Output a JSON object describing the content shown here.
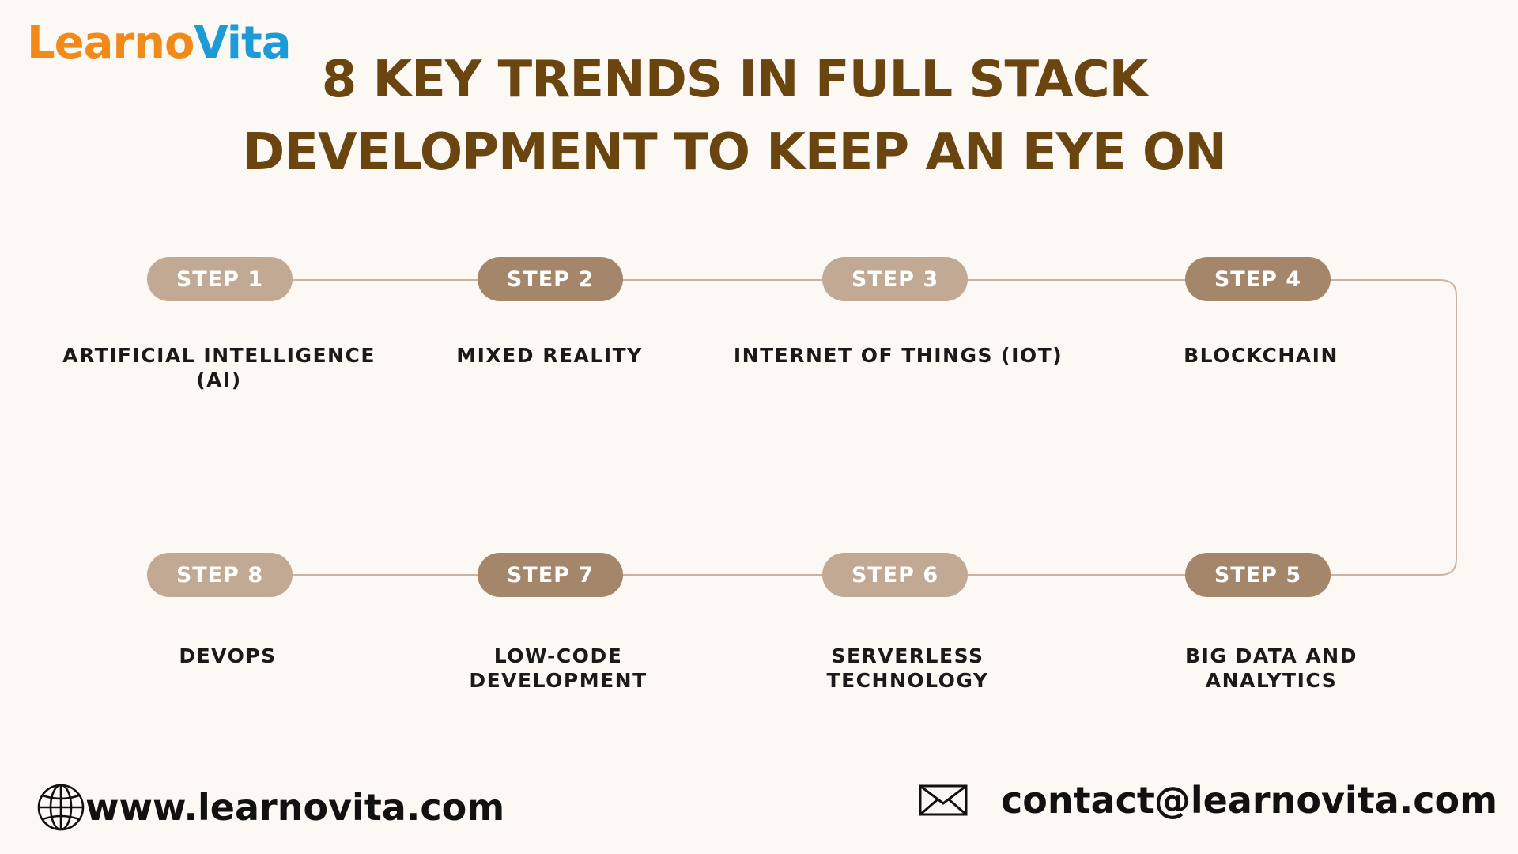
{
  "brand": {
    "part1": "Learno",
    "part2": "Vita",
    "color1": "#f28a1a",
    "color2": "#1e9bd7"
  },
  "title": {
    "line1": "8 KEY TRENDS IN FULL STACK",
    "line2": "DEVELOPMENT TO KEEP AN EYE ON"
  },
  "steps": [
    {
      "badge": "STEP 1",
      "label": "ARTIFICIAL INTELLIGENCE (AI)",
      "tone": "light"
    },
    {
      "badge": "STEP 2",
      "label": "MIXED REALITY",
      "tone": "dark"
    },
    {
      "badge": "STEP 3",
      "label": "INTERNET OF THINGS (IOT)",
      "tone": "light"
    },
    {
      "badge": "STEP 4",
      "label": "BLOCKCHAIN",
      "tone": "dark"
    },
    {
      "badge": "STEP 5",
      "label": "BIG DATA AND ANALYTICS",
      "tone": "dark"
    },
    {
      "badge": "STEP 6",
      "label": "SERVERLESS TECHNOLOGY",
      "tone": "light"
    },
    {
      "badge": "STEP 7",
      "label": "LOW-CODE DEVELOPMENT",
      "tone": "dark"
    },
    {
      "badge": "STEP 8",
      "label": "DEVOPS",
      "tone": "light"
    }
  ],
  "footer": {
    "website_icon": "globe-icon",
    "website": "www.learnovita.com",
    "email_icon": "envelope-icon",
    "email": "contact@learnovita.com"
  },
  "colors": {
    "title": "#6a4510",
    "pill_light": "#c1a993",
    "pill_dark": "#a4866b",
    "connector": "#c8b4a2",
    "background": "#fcf9f5"
  }
}
